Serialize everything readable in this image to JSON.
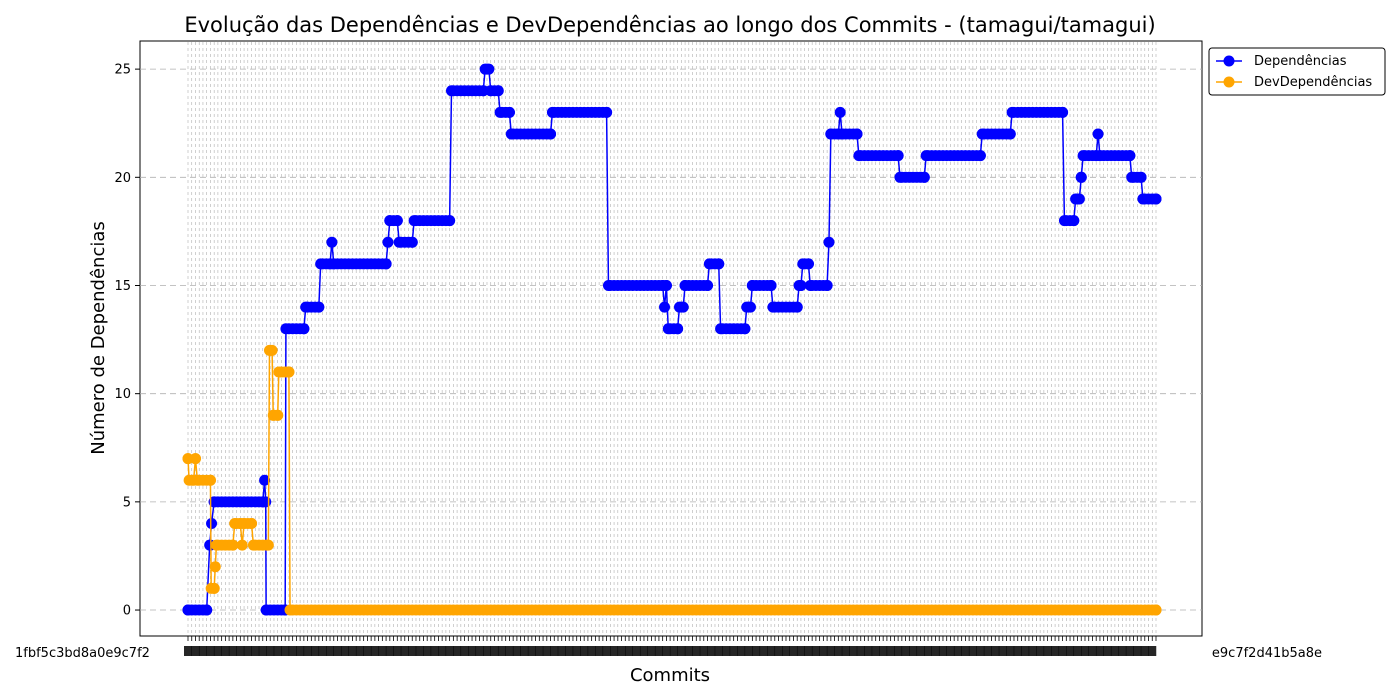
{
  "chart_data": {
    "type": "line",
    "title": "Evolução das Dependências e DevDependências ao longo dos Commits - (tamagui/tamagui)",
    "xlabel": "Commits",
    "ylabel": "Número de Dependências",
    "ylim": [
      -1.2,
      26.3
    ],
    "yticks": [
      0,
      5,
      10,
      15,
      20,
      25
    ],
    "grid": true,
    "legend_position": "top-right-outside",
    "x_tick_labels_note": "commit hashes (overlapping, unreadable)",
    "series": [
      {
        "name": "Dependências",
        "color": "#0000ff",
        "segments": [
          [
            0,
            0
          ],
          [
            5,
            0
          ],
          [
            5.8,
            3
          ],
          [
            6.3,
            4
          ],
          [
            7,
            5
          ],
          [
            20,
            5
          ],
          [
            20.5,
            6
          ],
          [
            20.8,
            5
          ],
          [
            20.9,
            0
          ],
          [
            26,
            0
          ],
          [
            26.2,
            13
          ],
          [
            31,
            13
          ],
          [
            31.5,
            14
          ],
          [
            35,
            14
          ],
          [
            35.5,
            16
          ],
          [
            38,
            16
          ],
          [
            38.5,
            17
          ],
          [
            39,
            16
          ],
          [
            53,
            16
          ],
          [
            53.5,
            17
          ],
          [
            54,
            18
          ],
          [
            56,
            18
          ],
          [
            56.5,
            17
          ],
          [
            60,
            17
          ],
          [
            60.5,
            18
          ],
          [
            70,
            18
          ],
          [
            70.5,
            24
          ],
          [
            79,
            24
          ],
          [
            79.5,
            25
          ],
          [
            80.5,
            25
          ],
          [
            81,
            24
          ],
          [
            83,
            24
          ],
          [
            83.5,
            23
          ],
          [
            86,
            23
          ],
          [
            86.5,
            22
          ],
          [
            97,
            22
          ],
          [
            97.5,
            23
          ],
          [
            112,
            23
          ],
          [
            112.5,
            15
          ],
          [
            127,
            15
          ],
          [
            127.5,
            14
          ],
          [
            128,
            15
          ],
          [
            128.5,
            13
          ],
          [
            131,
            13
          ],
          [
            131.5,
            14
          ],
          [
            132.5,
            14
          ],
          [
            133,
            15
          ],
          [
            139,
            15
          ],
          [
            139.5,
            16
          ],
          [
            142,
            16
          ],
          [
            142.5,
            13
          ],
          [
            149,
            13
          ],
          [
            149.5,
            14
          ],
          [
            150.5,
            14
          ],
          [
            151,
            15
          ],
          [
            156,
            15
          ],
          [
            156.5,
            14
          ],
          [
            163,
            14
          ],
          [
            163.5,
            15
          ],
          [
            164,
            15
          ],
          [
            164.5,
            16
          ],
          [
            166,
            16
          ],
          [
            166.5,
            15
          ],
          [
            171,
            15
          ],
          [
            171.5,
            17
          ],
          [
            172,
            22
          ],
          [
            174,
            22
          ],
          [
            174.5,
            23
          ],
          [
            175,
            22
          ],
          [
            179,
            22
          ],
          [
            179.5,
            21
          ],
          [
            190,
            21
          ],
          [
            190.5,
            20
          ],
          [
            197,
            20
          ],
          [
            197.5,
            21
          ],
          [
            212,
            21
          ],
          [
            212.5,
            22
          ],
          [
            220,
            22
          ],
          [
            220.5,
            23
          ],
          [
            234,
            23
          ],
          [
            234.5,
            18
          ],
          [
            237,
            18
          ],
          [
            237.5,
            19
          ],
          [
            238.5,
            19
          ],
          [
            239,
            20
          ],
          [
            239.5,
            21
          ],
          [
            243,
            21
          ],
          [
            243.5,
            22
          ],
          [
            244,
            21
          ],
          [
            252,
            21
          ],
          [
            252.5,
            20
          ],
          [
            255,
            20
          ],
          [
            255.5,
            19
          ],
          [
            259,
            19
          ]
        ]
      },
      {
        "name": "DevDependências",
        "color": "#ffa500",
        "segments": [
          [
            0,
            7
          ],
          [
            0.3,
            6
          ],
          [
            1.5,
            6
          ],
          [
            2,
            7
          ],
          [
            2.5,
            6
          ],
          [
            6,
            6
          ],
          [
            6.2,
            1
          ],
          [
            7,
            1
          ],
          [
            7.3,
            2
          ],
          [
            7.6,
            3
          ],
          [
            12,
            3
          ],
          [
            12.5,
            4
          ],
          [
            14,
            4
          ],
          [
            14.5,
            3
          ],
          [
            15,
            4
          ],
          [
            17,
            4
          ],
          [
            17.5,
            3
          ],
          [
            21.5,
            3
          ],
          [
            21.8,
            12
          ],
          [
            22.5,
            12
          ],
          [
            22.8,
            9
          ],
          [
            24,
            9
          ],
          [
            24.3,
            11
          ],
          [
            27,
            11
          ],
          [
            27.3,
            0
          ],
          [
            259,
            0
          ]
        ]
      }
    ]
  },
  "legend": {
    "items": [
      {
        "label": "Dependências",
        "color": "#0000ff"
      },
      {
        "label": "DevDependências",
        "color": "#ffa500"
      }
    ]
  },
  "x_axis": {
    "left_smear_text": "1fbf5c3bd8a0e9c7f2",
    "right_smear_text": "e9c7f2d41b5a8e"
  }
}
